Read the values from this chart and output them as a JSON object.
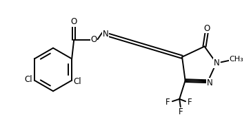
{
  "bg_color": "#ffffff",
  "line_color": "#000000",
  "line_width": 1.4,
  "font_size": 8.5,
  "figsize": [
    3.64,
    1.83
  ],
  "dpi": 100,
  "xlim": [
    0.0,
    9.5
  ],
  "ylim": [
    0.5,
    5.2
  ]
}
